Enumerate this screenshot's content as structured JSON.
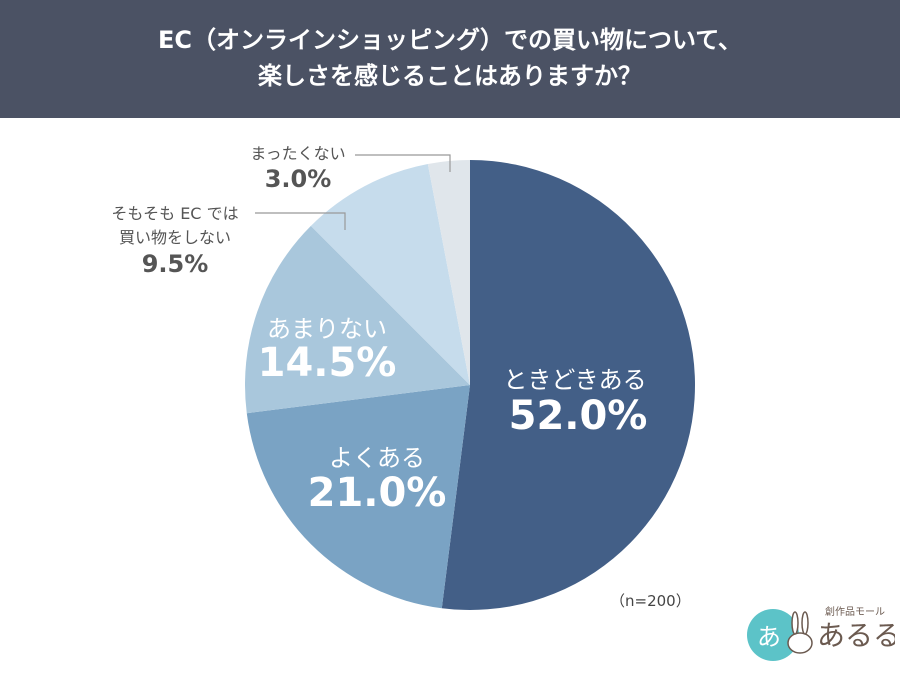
{
  "title": {
    "line1": "EC（オンラインショッピング）での買い物について、",
    "line2": "楽しさを感じることはありますか？"
  },
  "chart_data": {
    "type": "pie",
    "start": "top",
    "direction": "clockwise",
    "slices": [
      {
        "label": "ときどきある",
        "value": 52.0,
        "display": "52.0%",
        "color": "#435f87"
      },
      {
        "label": "よくある",
        "value": 21.0,
        "display": "21.0%",
        "color": "#7aa3c4"
      },
      {
        "label": "あまりない",
        "value": 14.5,
        "display": "14.5%",
        "color": "#a9c7dc"
      },
      {
        "label_line1": "そもそも EC では",
        "label_line2": "買い物をしない",
        "value": 9.5,
        "display": "9.5%",
        "color": "#c6dcec"
      },
      {
        "label": "まったくない",
        "value": 3.0,
        "display": "3.0%",
        "color": "#e0e6eb"
      }
    ],
    "note": "（n=200）"
  },
  "logo": {
    "small": "創作品モール",
    "main": "あるる",
    "badge": "あ"
  }
}
